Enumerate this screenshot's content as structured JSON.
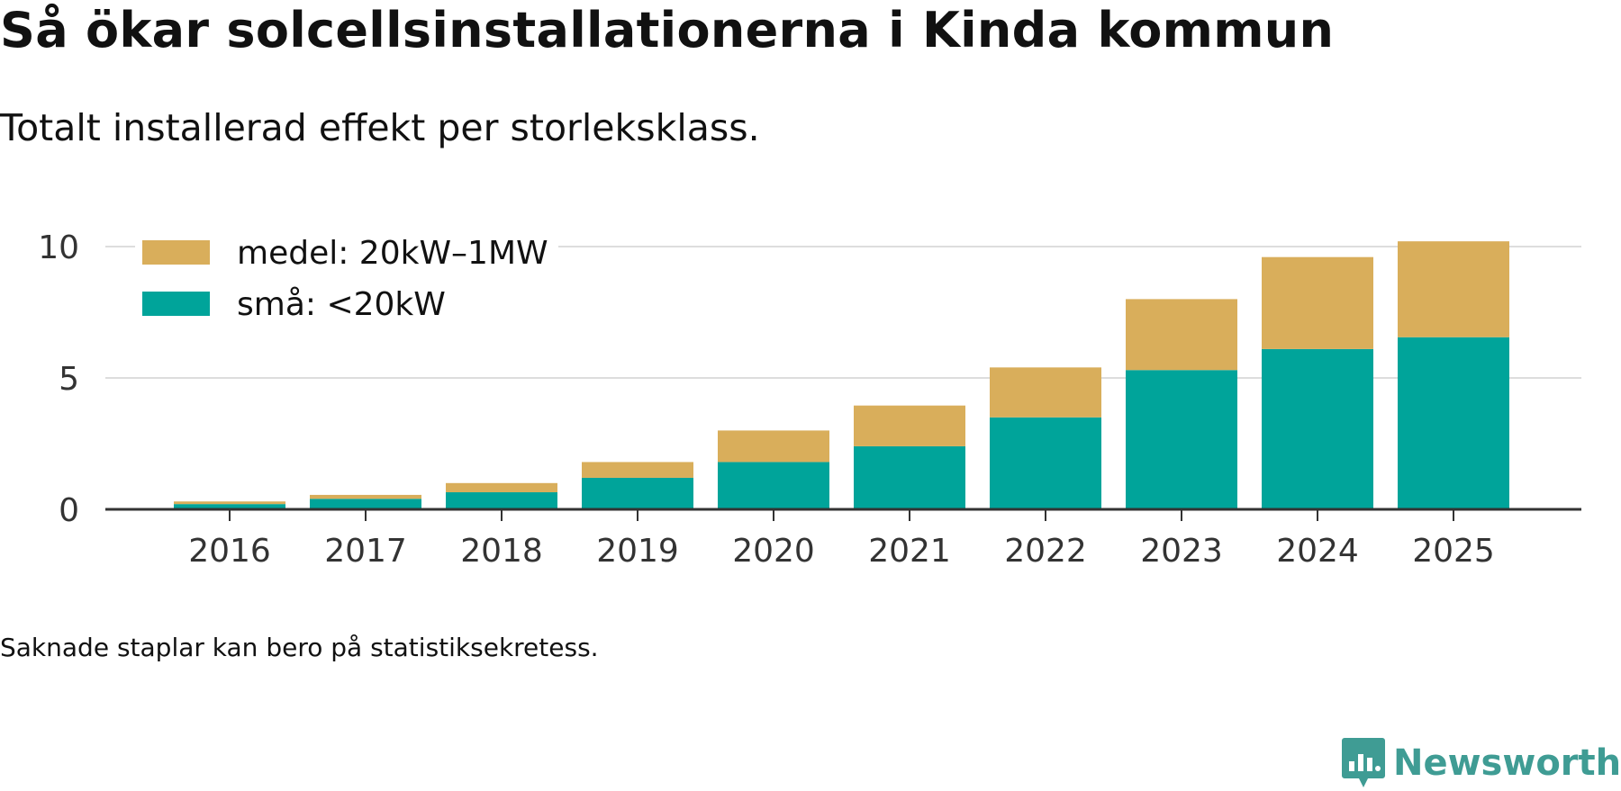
{
  "title": "Så ökar solcellsinstallationerna i Kinda kommun",
  "subtitle": "Totalt installerad effekt per storleksklass.",
  "note": "Saknade staplar kan bero på statistiksekretess.",
  "logo": {
    "text": "Newsworthy"
  },
  "colors": {
    "small": "#00a49a",
    "medium": "#d9ae5b",
    "grid": "#dddddd",
    "axis": "#333333",
    "text": "#333333"
  },
  "chart_data": {
    "type": "bar",
    "stacked": true,
    "title": "Så ökar solcellsinstallationerna i Kinda kommun",
    "xlabel": "",
    "ylabel": "",
    "ylim": [
      0,
      10
    ],
    "yticks": [
      0,
      5,
      10
    ],
    "grid": true,
    "legend_position": "top-left",
    "categories": [
      "2016",
      "2017",
      "2018",
      "2019",
      "2020",
      "2021",
      "2022",
      "2023",
      "2024",
      "2025"
    ],
    "series": [
      {
        "name": "små: <20kW",
        "key": "small",
        "values": [
          0.2,
          0.4,
          0.65,
          1.2,
          1.8,
          2.4,
          3.5,
          5.3,
          6.1,
          6.55
        ]
      },
      {
        "name": "medel: 20kW–1MW",
        "key": "medium",
        "values": [
          0.1,
          0.15,
          0.35,
          0.6,
          1.2,
          1.55,
          1.9,
          2.7,
          3.5,
          3.65
        ]
      }
    ]
  }
}
